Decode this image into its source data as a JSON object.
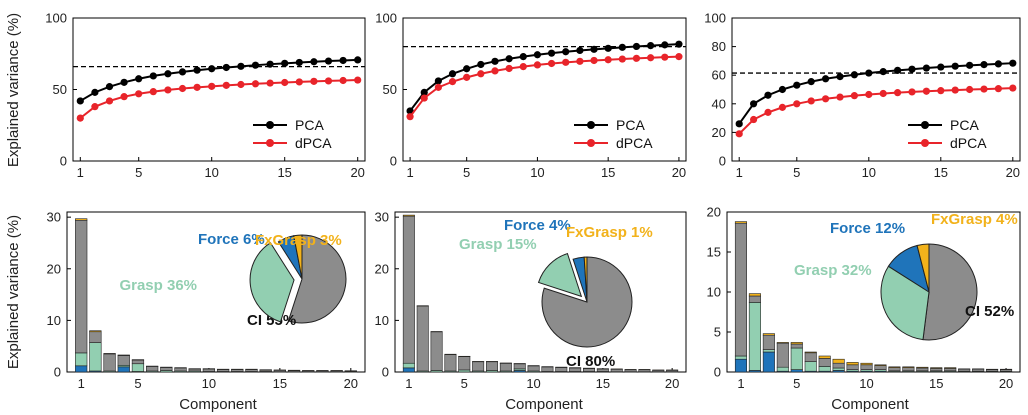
{
  "figure": {
    "ylabel_top": "Explained variance (%)",
    "ylabel_bottom": "Explained variance (%)",
    "xlabel": "Component"
  },
  "colors": {
    "pca": "#000000",
    "dpca": "#e8242a",
    "ci": "#8c8c8c",
    "grasp": "#92cfb1",
    "force": "#1f74ba",
    "fxgrasp": "#f2b21b"
  },
  "chart_data": [
    {
      "type": "line",
      "panel": "top-1",
      "x": [
        1,
        2,
        3,
        4,
        5,
        6,
        7,
        8,
        9,
        10,
        11,
        12,
        13,
        14,
        15,
        16,
        17,
        18,
        19,
        20
      ],
      "series": [
        {
          "name": "PCA",
          "color": "#000000",
          "values": [
            42,
            48,
            52,
            55,
            57.5,
            59.5,
            61,
            62.3,
            63.5,
            64.5,
            65.4,
            66.2,
            67,
            67.7,
            68.3,
            68.9,
            69.4,
            69.9,
            70.3,
            70.7
          ]
        },
        {
          "name": "dPCA",
          "color": "#e8242a",
          "values": [
            30,
            38,
            42,
            45,
            47,
            48.5,
            49.7,
            50.7,
            51.5,
            52.2,
            52.9,
            53.5,
            54,
            54.5,
            54.9,
            55.3,
            55.7,
            56,
            56.3,
            56.6
          ]
        }
      ],
      "threshold": 66,
      "xlim": [
        0.5,
        20.5
      ],
      "ylim": [
        0,
        100
      ],
      "xticks": [
        1,
        5,
        10,
        15,
        20
      ],
      "yticks": [
        0,
        50,
        100
      ],
      "legend": "bottom-right"
    },
    {
      "type": "line",
      "panel": "top-2",
      "x": [
        1,
        2,
        3,
        4,
        5,
        6,
        7,
        8,
        9,
        10,
        11,
        12,
        13,
        14,
        15,
        16,
        17,
        18,
        19,
        20
      ],
      "series": [
        {
          "name": "PCA",
          "color": "#000000",
          "values": [
            35,
            48,
            56,
            61,
            64.5,
            67.5,
            69.7,
            71.5,
            73,
            74.3,
            75.4,
            76.4,
            77.3,
            78.1,
            78.8,
            79.5,
            80.1,
            80.7,
            81.2,
            81.7
          ]
        },
        {
          "name": "dPCA",
          "color": "#e8242a",
          "values": [
            31,
            44,
            51.5,
            55.5,
            58.5,
            61,
            63,
            64.7,
            66,
            67.2,
            68.2,
            69,
            69.7,
            70.3,
            70.8,
            71.3,
            71.8,
            72.2,
            72.6,
            73
          ]
        }
      ],
      "threshold": 80,
      "xlim": [
        0.5,
        20.5
      ],
      "ylim": [
        0,
        100
      ],
      "xticks": [
        1,
        5,
        10,
        15,
        20
      ],
      "yticks": [
        0,
        50,
        100
      ],
      "legend": "bottom-right"
    },
    {
      "type": "line",
      "panel": "top-3",
      "x": [
        1,
        2,
        3,
        4,
        5,
        6,
        7,
        8,
        9,
        10,
        11,
        12,
        13,
        14,
        15,
        16,
        17,
        18,
        19,
        20
      ],
      "series": [
        {
          "name": "PCA",
          "color": "#000000",
          "values": [
            26,
            40,
            46,
            50,
            53,
            55.5,
            57.5,
            59,
            60.3,
            61.5,
            62.5,
            63.4,
            64.2,
            65,
            65.7,
            66.3,
            66.9,
            67.4,
            67.9,
            68.4
          ]
        },
        {
          "name": "dPCA",
          "color": "#e8242a",
          "values": [
            19,
            29,
            34,
            37.5,
            40,
            42,
            43.5,
            44.7,
            45.7,
            46.5,
            47.2,
            47.8,
            48.3,
            48.8,
            49.2,
            49.6,
            50,
            50.3,
            50.6,
            51
          ]
        }
      ],
      "threshold": 61.5,
      "xlim": [
        0.5,
        20.5
      ],
      "ylim": [
        0,
        100
      ],
      "xticks": [
        1,
        5,
        10,
        15,
        20
      ],
      "yticks": [
        0,
        20,
        40,
        60,
        80,
        100
      ],
      "legend": "bottom-right"
    },
    {
      "type": "bar",
      "stacked": true,
      "panel": "bottom-1",
      "x": [
        1,
        2,
        3,
        4,
        5,
        6,
        7,
        8,
        9,
        10,
        11,
        12,
        13,
        14,
        15,
        16,
        17,
        18,
        19,
        20
      ],
      "series": [
        {
          "name": "Force",
          "color": "#1f74ba",
          "values": [
            1.2,
            0.2,
            0,
            1,
            0.1,
            0,
            0,
            0,
            0,
            0,
            0,
            0,
            0,
            0,
            0,
            0,
            0,
            0,
            0,
            0
          ]
        },
        {
          "name": "Grasp",
          "color": "#92cfb1",
          "values": [
            2.5,
            5.5,
            0.2,
            0.3,
            1.5,
            0.2,
            0.3,
            0.2,
            0.2,
            0.1,
            0.1,
            0.1,
            0.1,
            0.1,
            0.05,
            0.05,
            0.05,
            0.05,
            0.05,
            0.05
          ]
        },
        {
          "name": "CI",
          "color": "#8c8c8c",
          "values": [
            25.7,
            2.1,
            3.3,
            1.9,
            0.7,
            0.9,
            0.6,
            0.6,
            0.4,
            0.5,
            0.4,
            0.4,
            0.4,
            0.3,
            0.3,
            0.25,
            0.2,
            0.2,
            0.2,
            0.15
          ]
        },
        {
          "name": "FxGrasp",
          "color": "#f2b21b",
          "values": [
            0.3,
            0.2,
            0.1,
            0.1,
            0.1,
            0.05,
            0.05,
            0.05,
            0.05,
            0.05,
            0.05,
            0.05,
            0.05,
            0.05,
            0.05,
            0.05,
            0.05,
            0.05,
            0.05,
            0.05
          ]
        }
      ],
      "xlim": [
        0,
        21
      ],
      "ylim": [
        0,
        31
      ],
      "xticks": [
        1,
        5,
        10,
        15,
        20
      ],
      "yticks": [
        0,
        10,
        20,
        30
      ],
      "pie": {
        "slices": [
          {
            "name": "CI",
            "label": "CI 55%",
            "value": 55,
            "color": "#8c8c8c"
          },
          {
            "name": "Grasp",
            "label": "Grasp 36%",
            "value": 36,
            "color": "#92cfb1",
            "explode": true
          },
          {
            "name": "Force",
            "label": "Force 6%",
            "value": 6,
            "color": "#1f74ba"
          },
          {
            "name": "FxGrasp",
            "label": "FxGrasp 3%",
            "value": 3,
            "color": "#f2b21b"
          }
        ]
      }
    },
    {
      "type": "bar",
      "stacked": true,
      "panel": "bottom-2",
      "x": [
        1,
        2,
        3,
        4,
        5,
        6,
        7,
        8,
        9,
        10,
        11,
        12,
        13,
        14,
        15,
        16,
        17,
        18,
        19,
        20
      ],
      "series": [
        {
          "name": "Force",
          "color": "#1f74ba",
          "values": [
            0.8,
            0,
            0,
            0,
            0,
            0,
            0,
            0,
            0.3,
            0,
            0,
            0,
            0,
            0,
            0,
            0,
            0,
            0,
            0,
            0
          ]
        },
        {
          "name": "Grasp",
          "color": "#92cfb1",
          "values": [
            0.9,
            0.2,
            0.3,
            0.2,
            0.4,
            0.2,
            0.3,
            0.2,
            0.3,
            0.2,
            0.1,
            0.1,
            0.1,
            0.1,
            0.1,
            0.05,
            0.05,
            0.05,
            0.05,
            0.05
          ]
        },
        {
          "name": "CI",
          "color": "#8c8c8c",
          "values": [
            28.5,
            12.6,
            7.5,
            3.2,
            2.6,
            1.8,
            1.7,
            1.5,
            1,
            1,
            0.9,
            0.8,
            0.7,
            0.6,
            0.5,
            0.5,
            0.4,
            0.4,
            0.3,
            0.3
          ]
        },
        {
          "name": "FxGrasp",
          "color": "#f2b21b",
          "values": [
            0.2,
            0.05,
            0.05,
            0.05,
            0.05,
            0.05,
            0.05,
            0.05,
            0.05,
            0.05,
            0.05,
            0.05,
            0.05,
            0.05,
            0.05,
            0.05,
            0.05,
            0.05,
            0.05,
            0.05
          ]
        }
      ],
      "xlim": [
        0,
        21
      ],
      "ylim": [
        0,
        31
      ],
      "xticks": [
        1,
        5,
        10,
        15,
        20
      ],
      "yticks": [
        0,
        10,
        20,
        30
      ],
      "pie": {
        "slices": [
          {
            "name": "CI",
            "label": "CI 80%",
            "value": 80,
            "color": "#8c8c8c"
          },
          {
            "name": "Grasp",
            "label": "Grasp 15%",
            "value": 15,
            "color": "#92cfb1",
            "explode": true
          },
          {
            "name": "Force",
            "label": "Force 4%",
            "value": 4,
            "color": "#1f74ba"
          },
          {
            "name": "FxGrasp",
            "label": "FxGrasp 1%",
            "value": 1,
            "color": "#f2b21b"
          }
        ]
      }
    },
    {
      "type": "bar",
      "stacked": true,
      "panel": "bottom-3",
      "x": [
        1,
        2,
        3,
        4,
        5,
        6,
        7,
        8,
        9,
        10,
        11,
        12,
        13,
        14,
        15,
        16,
        17,
        18,
        19,
        20
      ],
      "series": [
        {
          "name": "Force",
          "color": "#1f74ba",
          "values": [
            1.6,
            0.2,
            2.5,
            0.1,
            0.3,
            0.1,
            0.1,
            0.2,
            0.1,
            0.1,
            0.1,
            0.05,
            0.05,
            0.05,
            0.05,
            0.05,
            0.05,
            0.05,
            0.05,
            0.05
          ]
        },
        {
          "name": "Grasp",
          "color": "#92cfb1",
          "values": [
            0.4,
            8.5,
            0.3,
            0.5,
            2.7,
            1.2,
            0.6,
            0.3,
            0.2,
            0.2,
            0.2,
            0.1,
            0.1,
            0.1,
            0.1,
            0.1,
            0.05,
            0.05,
            0.05,
            0.05
          ]
        },
        {
          "name": "CI",
          "color": "#8c8c8c",
          "values": [
            16.6,
            0.8,
            1.8,
            3,
            0.5,
            1.1,
            1,
            0.6,
            0.6,
            0.6,
            0.5,
            0.4,
            0.4,
            0.35,
            0.3,
            0.3,
            0.25,
            0.25,
            0.2,
            0.2
          ]
        },
        {
          "name": "FxGrasp",
          "color": "#f2b21b",
          "values": [
            0.2,
            0.3,
            0.2,
            0.1,
            0.2,
            0.1,
            0.3,
            0.5,
            0.3,
            0.2,
            0.1,
            0.1,
            0.1,
            0.1,
            0.1,
            0.1,
            0.05,
            0.05,
            0.05,
            0.05
          ]
        }
      ],
      "xlim": [
        0,
        21
      ],
      "ylim": [
        0,
        20
      ],
      "xticks": [
        1,
        5,
        10,
        15,
        20
      ],
      "yticks": [
        0,
        5,
        10,
        15,
        20
      ],
      "pie": {
        "slices": [
          {
            "name": "CI",
            "label": "CI 52%",
            "value": 52,
            "color": "#8c8c8c"
          },
          {
            "name": "Grasp",
            "label": "Grasp 32%",
            "value": 32,
            "color": "#92cfb1"
          },
          {
            "name": "Force",
            "label": "Force 12%",
            "value": 12,
            "color": "#1f74ba"
          },
          {
            "name": "FxGrasp",
            "label": "FxGrasp 4%",
            "value": 4,
            "color": "#f2b21b"
          }
        ]
      }
    }
  ]
}
